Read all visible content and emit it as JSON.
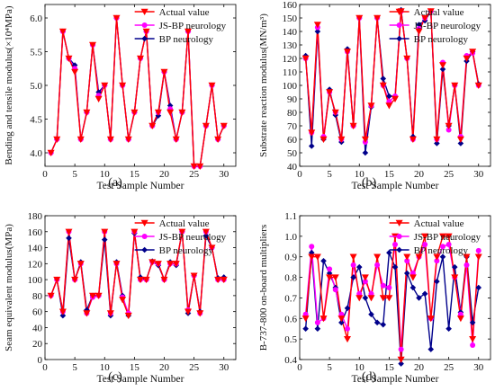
{
  "chart_data": [
    {
      "type": "line",
      "panel_label": "(a)",
      "xlabel": "Test Sample Number",
      "ylabel": "Bending and tensile modulus(×10⁴MPa)",
      "xlim": [
        0,
        32
      ],
      "ylim": [
        3.8,
        6.2
      ],
      "xticks": [
        0,
        5,
        10,
        15,
        20,
        25,
        30
      ],
      "yticks": [
        4.0,
        4.5,
        5.0,
        5.5,
        6.0
      ],
      "ytick_labels": [
        "4.0",
        "4.5",
        "5.0",
        "5.5",
        "6.0"
      ],
      "legend_position": "top-right",
      "x": [
        1,
        2,
        3,
        4,
        5,
        6,
        7,
        8,
        9,
        10,
        11,
        12,
        13,
        14,
        15,
        16,
        17,
        18,
        19,
        20,
        21,
        22,
        23,
        24,
        25,
        26,
        27,
        28,
        29,
        30
      ],
      "series": [
        {
          "name": "Actual value",
          "color": "#ff0000",
          "marker": "triangle-down",
          "values": [
            4.0,
            4.2,
            5.8,
            5.4,
            5.2,
            4.2,
            4.6,
            5.6,
            4.8,
            5.0,
            4.2,
            6.0,
            5.0,
            4.2,
            4.6,
            5.4,
            5.8,
            4.4,
            4.6,
            5.2,
            4.6,
            4.2,
            4.6,
            5.8,
            3.8,
            3.8,
            4.4,
            5.0,
            4.2,
            4.4
          ]
        },
        {
          "name": "JS-BP neurology",
          "color": "#ff00ff",
          "marker": "circle",
          "values": [
            4.0,
            4.2,
            5.8,
            5.4,
            5.25,
            4.2,
            4.6,
            5.6,
            4.85,
            5.0,
            4.2,
            6.0,
            5.0,
            4.2,
            4.6,
            5.4,
            5.8,
            4.4,
            4.6,
            5.2,
            4.65,
            4.2,
            4.6,
            5.8,
            3.8,
            3.8,
            4.4,
            5.0,
            4.2,
            4.4
          ]
        },
        {
          "name": "BP neurology",
          "color": "#00008b",
          "marker": "diamond",
          "values": [
            4.0,
            4.2,
            5.8,
            5.4,
            5.3,
            4.2,
            4.6,
            5.6,
            4.9,
            5.0,
            4.2,
            6.0,
            5.0,
            4.2,
            4.6,
            5.4,
            5.8,
            4.4,
            4.55,
            5.2,
            4.7,
            4.2,
            4.6,
            5.8,
            3.8,
            3.8,
            4.4,
            5.0,
            4.2,
            4.4
          ]
        }
      ]
    },
    {
      "type": "line",
      "panel_label": "(b)",
      "xlabel": "Test Sample Number",
      "ylabel": "Substrate reaction modulus(MN/m³)",
      "xlim": [
        0,
        32
      ],
      "ylim": [
        40,
        160
      ],
      "xticks": [
        0,
        5,
        10,
        15,
        20,
        25,
        30
      ],
      "yticks": [
        40,
        50,
        60,
        70,
        80,
        90,
        100,
        110,
        120,
        130,
        140,
        150,
        160
      ],
      "ytick_labels": [
        "40",
        "50",
        "60",
        "70",
        "80",
        "90",
        "100",
        "110",
        "120",
        "130",
        "140",
        "150",
        "160"
      ],
      "legend_position": "top-right",
      "x": [
        1,
        2,
        3,
        4,
        5,
        6,
        7,
        8,
        9,
        10,
        11,
        12,
        13,
        14,
        15,
        16,
        17,
        18,
        19,
        20,
        21,
        22,
        23,
        24,
        25,
        26,
        27,
        28,
        29,
        30
      ],
      "series": [
        {
          "name": "Actual value",
          "color": "#ff0000",
          "marker": "triangle-down",
          "values": [
            120,
            65,
            145,
            60,
            95,
            80,
            60,
            125,
            70,
            150,
            60,
            85,
            150,
            100,
            85,
            90,
            155,
            120,
            60,
            140,
            150,
            155,
            60,
            115,
            70,
            100,
            60,
            120,
            125,
            100
          ]
        },
        {
          "name": "JS-BP neurology",
          "color": "#ff00ff",
          "marker": "circle",
          "values": [
            120,
            65,
            143,
            62,
            95,
            80,
            60,
            125,
            70,
            150,
            58,
            85,
            150,
            100,
            88,
            92,
            155,
            120,
            60,
            142,
            150,
            155,
            60,
            117,
            67,
            100,
            62,
            122,
            124,
            100
          ]
        },
        {
          "name": "BP neurology",
          "color": "#00008b",
          "marker": "diamond",
          "values": [
            122,
            55,
            140,
            60,
            97,
            78,
            58,
            127,
            70,
            150,
            50,
            84,
            150,
            105,
            92,
            92,
            156,
            120,
            62,
            145,
            148,
            155,
            57,
            112,
            70,
            100,
            57,
            118,
            125,
            101
          ]
        }
      ]
    },
    {
      "type": "line",
      "panel_label": "(c)",
      "xlabel": "Test Sample Number",
      "ylabel": "Seam equivalent modulus(MPa)",
      "xlim": [
        0,
        32
      ],
      "ylim": [
        0,
        180
      ],
      "xticks": [
        0,
        5,
        10,
        15,
        20,
        25,
        30
      ],
      "yticks": [
        0,
        20,
        40,
        60,
        80,
        100,
        120,
        140,
        160,
        180
      ],
      "ytick_labels": [
        "0",
        "20",
        "40",
        "60",
        "80",
        "100",
        "120",
        "140",
        "160",
        "180"
      ],
      "legend_position": "top-right",
      "x": [
        1,
        2,
        3,
        4,
        5,
        6,
        7,
        8,
        9,
        10,
        11,
        12,
        13,
        14,
        15,
        16,
        17,
        18,
        19,
        20,
        21,
        22,
        23,
        24,
        25,
        26,
        27,
        28,
        29,
        30
      ],
      "series": [
        {
          "name": "Actual value",
          "color": "#ff0000",
          "marker": "triangle-down",
          "values": [
            80,
            100,
            60,
            160,
            100,
            120,
            58,
            80,
            80,
            160,
            58,
            120,
            75,
            55,
            160,
            100,
            100,
            122,
            120,
            100,
            120,
            120,
            160,
            60,
            105,
            58,
            160,
            140,
            100,
            100
          ]
        },
        {
          "name": "JS-BP neurology",
          "color": "#ff00ff",
          "marker": "circle",
          "values": [
            80,
            100,
            60,
            160,
            100,
            120,
            58,
            78,
            80,
            160,
            58,
            120,
            78,
            58,
            160,
            100,
            100,
            122,
            120,
            100,
            120,
            120,
            160,
            62,
            105,
            58,
            160,
            140,
            100,
            100
          ]
        },
        {
          "name": "BP neurology",
          "color": "#00008b",
          "marker": "diamond",
          "values": [
            80,
            100,
            55,
            152,
            100,
            122,
            62,
            80,
            80,
            150,
            55,
            122,
            80,
            55,
            158,
            103,
            100,
            123,
            118,
            100,
            122,
            118,
            160,
            58,
            105,
            60,
            155,
            140,
            102,
            103
          ]
        }
      ]
    },
    {
      "type": "line",
      "panel_label": "(d)",
      "xlabel": "Test Sample Number",
      "ylabel": "B-737-800 on-board multipliers",
      "xlim": [
        0,
        32
      ],
      "ylim": [
        0.4,
        1.1
      ],
      "xticks": [
        0,
        5,
        10,
        15,
        20,
        25,
        30
      ],
      "yticks": [
        0.4,
        0.5,
        0.6,
        0.7,
        0.8,
        0.9,
        1.0,
        1.1
      ],
      "ytick_labels": [
        "0.4",
        "0.5",
        "0.6",
        "0.7",
        "0.8",
        "0.9",
        "1.0",
        "1.1"
      ],
      "legend_position": "top-right",
      "x": [
        1,
        2,
        3,
        4,
        5,
        6,
        7,
        8,
        9,
        10,
        11,
        12,
        13,
        14,
        15,
        16,
        17,
        18,
        19,
        20,
        21,
        22,
        23,
        24,
        25,
        26,
        27,
        28,
        29,
        30
      ],
      "series": [
        {
          "name": "Actual value",
          "color": "#ff0000",
          "marker": "triangle-down",
          "values": [
            0.6,
            0.9,
            0.9,
            0.6,
            0.8,
            0.8,
            0.6,
            0.5,
            0.9,
            0.7,
            0.8,
            0.7,
            0.9,
            0.7,
            0.7,
            1.0,
            0.4,
            0.9,
            0.8,
            0.9,
            1.0,
            0.6,
            0.9,
            1.0,
            1.0,
            0.8,
            0.6,
            0.9,
            0.5,
            0.9
          ]
        },
        {
          "name": "JS-BP neurology",
          "color": "#ff00ff",
          "marker": "circle",
          "values": [
            0.62,
            0.95,
            0.58,
            0.6,
            0.84,
            0.74,
            0.62,
            0.55,
            0.86,
            0.72,
            0.78,
            0.72,
            0.86,
            0.76,
            0.75,
            0.96,
            0.45,
            0.88,
            0.82,
            0.9,
            0.96,
            0.6,
            0.88,
            0.95,
            0.96,
            0.8,
            0.62,
            0.86,
            0.47,
            0.93
          ]
        },
        {
          "name": "BP neurology",
          "color": "#00008b",
          "marker": "diamond",
          "values": [
            0.55,
            0.92,
            0.55,
            0.88,
            0.82,
            0.75,
            0.58,
            0.65,
            0.8,
            0.85,
            0.7,
            0.62,
            0.58,
            0.57,
            0.92,
            0.85,
            0.38,
            0.82,
            0.75,
            0.7,
            0.72,
            0.45,
            0.78,
            0.9,
            0.55,
            0.85,
            0.63,
            0.9,
            0.58,
            0.75
          ]
        }
      ]
    }
  ]
}
